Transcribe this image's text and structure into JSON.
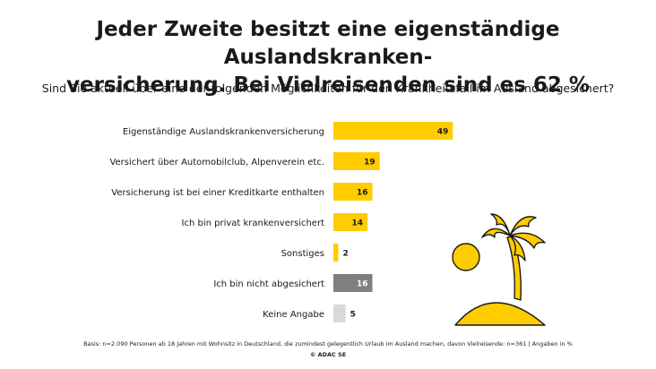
{
  "header": {
    "title_line1": "Jeder Zweite besitzt eine eigenständige Auslandskranken-",
    "title_line2": "versicherung. Bei Vielreisenden sind es 62 %",
    "subtitle": "Sind Sie aktuell über eine der folgenden Möglichkeiten für den Krankheitsfall im Ausland abgesichert?"
  },
  "chart_data": {
    "type": "bar",
    "orientation": "horizontal",
    "title": "Jeder Zweite besitzt eine eigenständige Auslandskrankenversicherung. Bei Vielreisenden sind es 62 %",
    "subtitle": "Sind Sie aktuell über eine der folgenden Möglichkeiten für den Krankheitsfall im Ausland abgesichert?",
    "unit": "%",
    "categories": [
      "Eigenständige Auslandskrankenversicherung",
      "Versichert über Automobilclub, Alpenverein etc.",
      "Versicherung ist bei einer Kreditkarte enthalten",
      "Ich bin privat krankenversichert",
      "Sonstiges",
      "Ich bin nicht abgesichert",
      "Keine Angabe"
    ],
    "values": [
      49,
      19,
      16,
      14,
      2,
      16,
      5
    ],
    "colors": [
      "#FFCC00",
      "#FFCC00",
      "#FFCC00",
      "#FFCC00",
      "#FFCC00",
      "#7F7F7F",
      "#D9D9D9"
    ],
    "xlim": [
      0,
      100
    ],
    "grid": false,
    "legend": "none"
  },
  "footer": {
    "basis": "Basis: n=2.090 Personen ab 18 Jahren mit Wohnsitz in Deutschland, die zumindest gelegentlich Urlaub im Ausland machen, davon Vielreisende: n=361 | Angaben in %",
    "copyright": "© ADAC SE"
  },
  "illustration": {
    "icon": "palm-island-icon",
    "fill": "#FFCC00",
    "stroke": "#1a1a1a"
  }
}
